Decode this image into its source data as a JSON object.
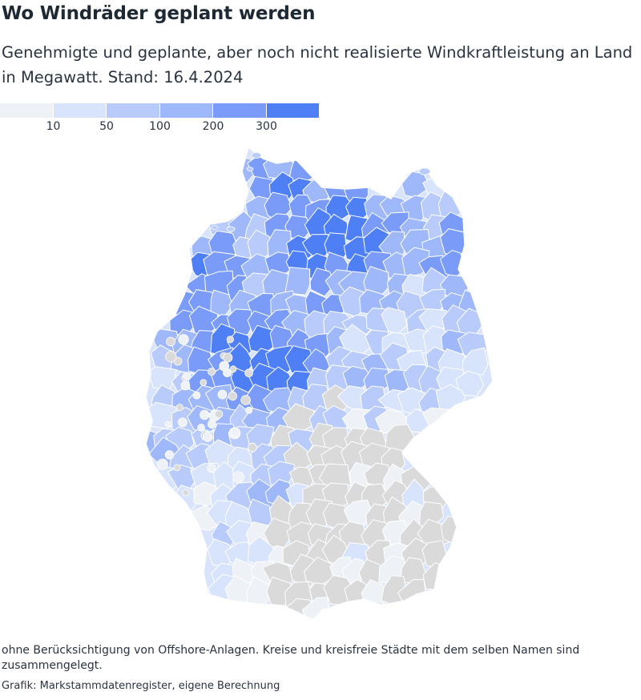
{
  "header": {
    "title": "Wo Windräder geplant werden",
    "subtitle": "Genehmigte und geplante, aber noch nicht realisierte Windkraftleistung an Land in Megawatt. Stand: 16.4.2024"
  },
  "legend": {
    "bins": [
      {
        "color": "#eef1f6"
      },
      {
        "color": "#d8e3fc"
      },
      {
        "color": "#b8cbfb"
      },
      {
        "color": "#9fb8fa"
      },
      {
        "color": "#7a9cf8"
      },
      {
        "color": "#4f7ff5"
      }
    ],
    "thresholds": [
      "10",
      "50",
      "100",
      "200",
      "300"
    ]
  },
  "colors": {
    "no_data": "#dadada",
    "border": "#ffffff"
  },
  "footer": {
    "note": "ohne Berücksichtigung von Offshore-Anlagen. Kreise und kreisfreie Städte mit dem selben Namen sind zusammengelegt.",
    "source": "Grafik: Markstammdatenregister, eigene Berechnung"
  }
}
